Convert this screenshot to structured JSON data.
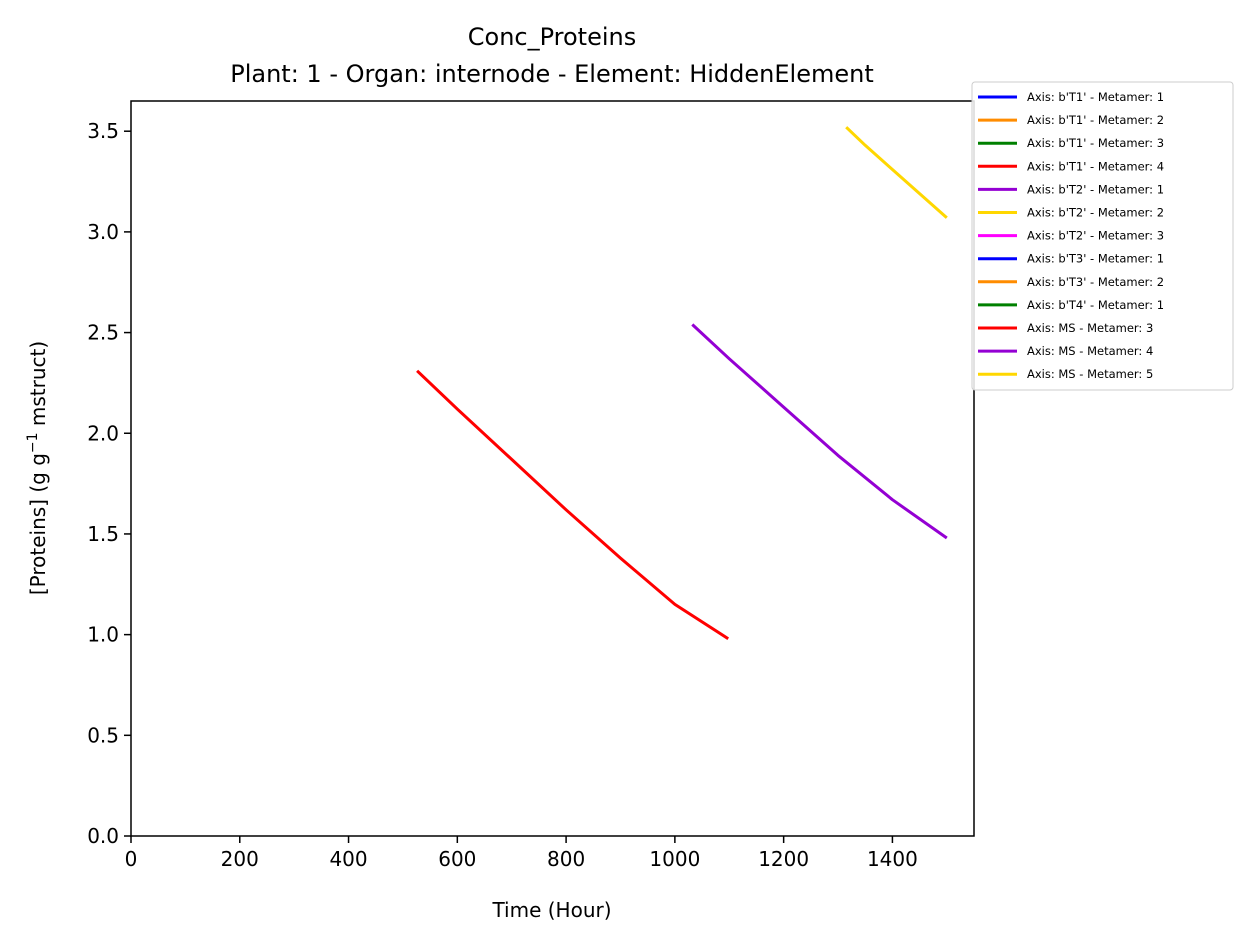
{
  "chart_data": {
    "type": "line",
    "title": "Conc_Proteins",
    "subtitle": "Plant: 1 - Organ: internode - Element: HiddenElement",
    "xlabel": "Time (Hour)",
    "ylabel_main": "[Proteins] (g g",
    "ylabel_sup": "−1",
    "ylabel_tail": " mstruct)",
    "xlim": [
      0,
      1550
    ],
    "ylim": [
      0,
      3.65
    ],
    "xticks": [
      0,
      200,
      400,
      600,
      800,
      1000,
      1200,
      1400
    ],
    "yticks": [
      0.0,
      0.5,
      1.0,
      1.5,
      2.0,
      2.5,
      3.0,
      3.5
    ],
    "xtick_labels": [
      "0",
      "200",
      "400",
      "600",
      "800",
      "1000",
      "1200",
      "1400"
    ],
    "ytick_labels": [
      "0.0",
      "0.5",
      "1.0",
      "1.5",
      "2.0",
      "2.5",
      "3.0",
      "3.5"
    ],
    "grid": false,
    "legend_position": "outside right, top",
    "series": [
      {
        "name": "Axis: b'T1' - Metamer: 1",
        "color": "#0000ff",
        "x": [],
        "y": []
      },
      {
        "name": "Axis: b'T1' - Metamer: 2",
        "color": "#ff8c00",
        "x": [],
        "y": []
      },
      {
        "name": "Axis: b'T1' - Metamer: 3",
        "color": "#008000",
        "x": [],
        "y": []
      },
      {
        "name": "Axis: b'T1' - Metamer: 4",
        "color": "#ff0000",
        "x": [],
        "y": []
      },
      {
        "name": "Axis: b'T2' - Metamer: 1",
        "color": "#9400d3",
        "x": [],
        "y": []
      },
      {
        "name": "Axis: b'T2' - Metamer: 2",
        "color": "#ffd700",
        "x": [],
        "y": []
      },
      {
        "name": "Axis: b'T2' - Metamer: 3",
        "color": "#ff00ff",
        "x": [],
        "y": []
      },
      {
        "name": "Axis: b'T3' - Metamer: 1",
        "color": "#0000ff",
        "x": [],
        "y": []
      },
      {
        "name": "Axis: b'T3' - Metamer: 2",
        "color": "#ff8c00",
        "x": [],
        "y": []
      },
      {
        "name": "Axis: b'T4' - Metamer: 1",
        "color": "#008000",
        "x": [],
        "y": []
      },
      {
        "name": "Axis: MS - Metamer: 3",
        "color": "#ff0000",
        "x": [
          526,
          600,
          700,
          800,
          900,
          1000,
          1098
        ],
        "y": [
          2.31,
          2.12,
          1.87,
          1.62,
          1.38,
          1.15,
          0.98
        ]
      },
      {
        "name": "Axis: MS - Metamer: 4",
        "color": "#9400d3",
        "x": [
          1032,
          1100,
          1200,
          1300,
          1400,
          1500
        ],
        "y": [
          2.54,
          2.37,
          2.13,
          1.89,
          1.67,
          1.48
        ]
      },
      {
        "name": "Axis: MS - Metamer: 5",
        "color": "#ffd700",
        "x": [
          1315,
          1350,
          1400,
          1450,
          1500
        ],
        "y": [
          3.52,
          3.43,
          3.31,
          3.19,
          3.07
        ]
      }
    ]
  }
}
